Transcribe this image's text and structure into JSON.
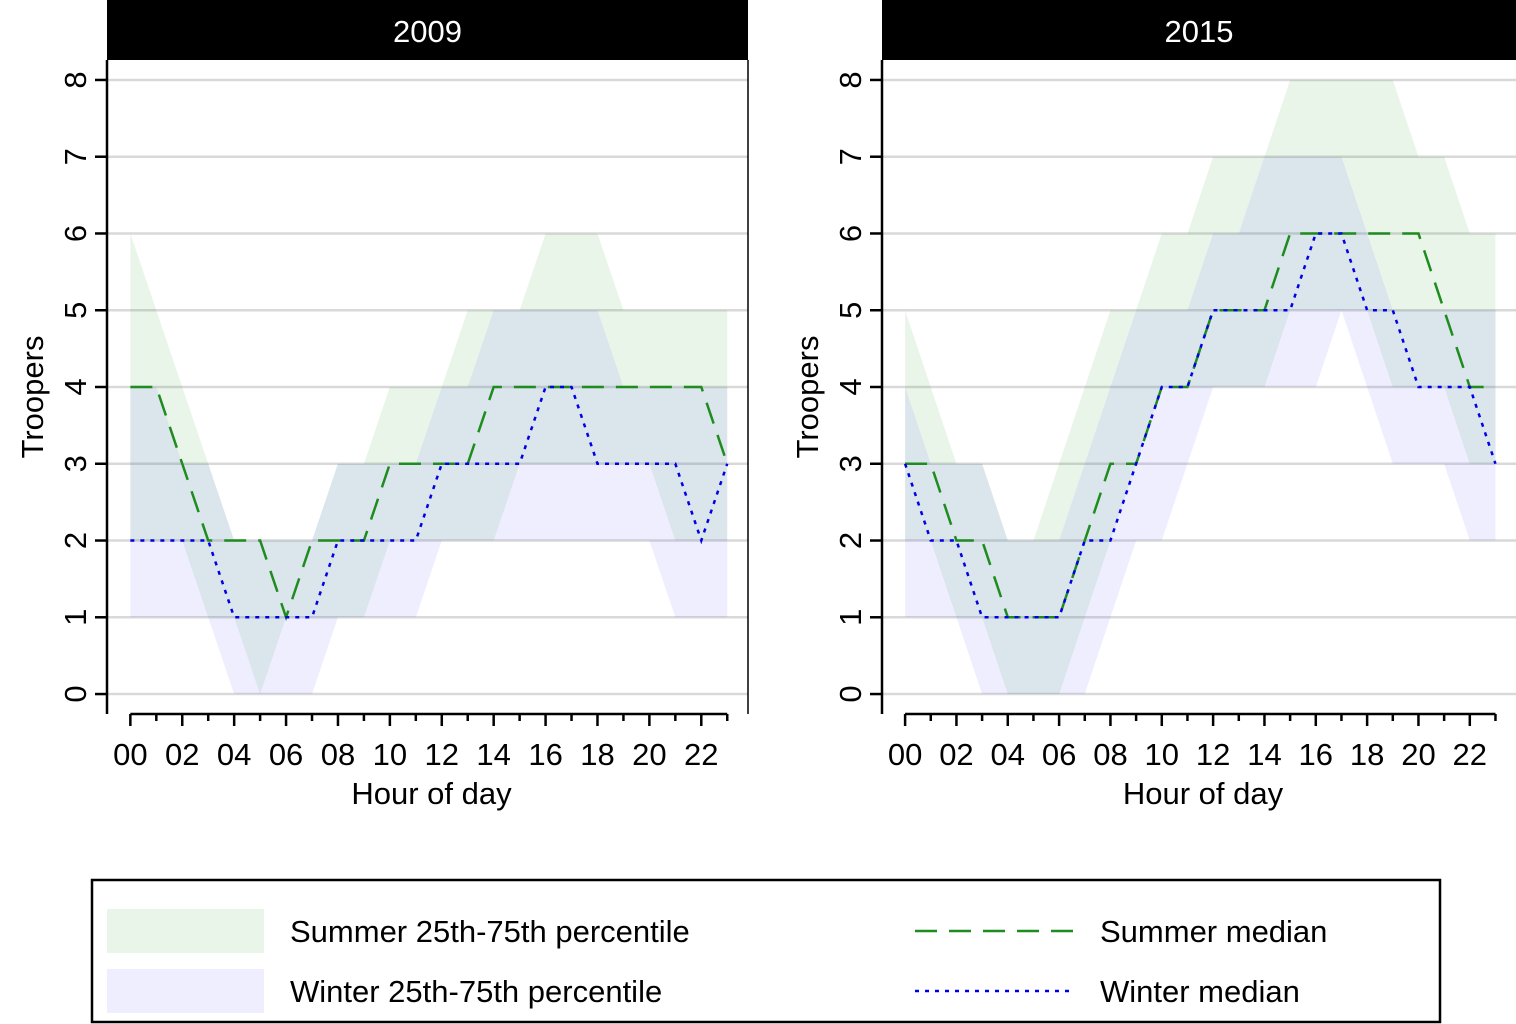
{
  "chart_data": [
    {
      "type": "line",
      "title": "2009",
      "y_label": "Troopers",
      "x_label": "Hour of day",
      "x": [
        0,
        1,
        2,
        3,
        4,
        5,
        6,
        7,
        8,
        9,
        10,
        11,
        12,
        13,
        14,
        15,
        16,
        17,
        18,
        19,
        20,
        21,
        22,
        23
      ],
      "xlim": [
        -0.9,
        23.8
      ],
      "ylim": [
        -0.26,
        8.26
      ],
      "xticks": [
        {
          "value": 0,
          "label": "00"
        },
        {
          "value": 2,
          "label": "02"
        },
        {
          "value": 4,
          "label": "04"
        },
        {
          "value": 6,
          "label": "06"
        },
        {
          "value": 8,
          "label": "08"
        },
        {
          "value": 10,
          "label": "10"
        },
        {
          "value": 12,
          "label": "12"
        },
        {
          "value": 14,
          "label": "14"
        },
        {
          "value": 16,
          "label": "16"
        },
        {
          "value": 18,
          "label": "18"
        },
        {
          "value": 20,
          "label": "20"
        },
        {
          "value": 22,
          "label": "22"
        }
      ],
      "yticks": [
        0,
        1,
        2,
        3,
        4,
        5,
        6,
        7,
        8
      ],
      "grid": true,
      "series": [
        {
          "name": "Summer 25th-75th percentile",
          "color": "#2e9e2e",
          "lower": [
            2,
            2,
            2,
            1,
            1,
            0,
            1,
            1,
            1,
            1,
            2,
            2,
            2,
            2,
            2,
            3,
            3,
            3,
            3,
            3,
            3,
            2,
            2,
            2
          ],
          "upper": [
            6,
            5,
            4,
            3,
            2,
            2,
            2,
            2,
            3,
            3,
            4,
            4,
            4,
            5,
            5,
            5,
            6,
            6,
            6,
            5,
            5,
            5,
            5,
            5
          ]
        },
        {
          "name": "Winter 25th-75th percentile",
          "color": "#5a5aff",
          "lower": [
            1,
            1,
            1,
            1,
            0,
            0,
            0,
            0,
            1,
            1,
            1,
            1,
            2,
            2,
            2,
            2,
            2,
            2,
            2,
            2,
            2,
            1,
            1,
            1
          ],
          "upper": [
            4,
            4,
            3,
            3,
            2,
            2,
            2,
            2,
            3,
            3,
            3,
            3,
            4,
            4,
            5,
            5,
            5,
            5,
            5,
            4,
            4,
            4,
            4,
            4
          ]
        },
        {
          "name": "Summer median",
          "color": "#1f8c1f",
          "dash": "dashed",
          "values": [
            4,
            4,
            3,
            2,
            2,
            2,
            1,
            2,
            2,
            2,
            3,
            3,
            3,
            3,
            4,
            4,
            4,
            4,
            4,
            4,
            4,
            4,
            4,
            3
          ]
        },
        {
          "name": "Winter median",
          "color": "#0000e6",
          "dash": "dotted",
          "values": [
            2,
            2,
            2,
            2,
            1,
            1,
            1,
            1,
            2,
            2,
            2,
            2,
            3,
            3,
            3,
            3,
            4,
            4,
            3,
            3,
            3,
            3,
            2,
            3
          ]
        }
      ]
    },
    {
      "type": "line",
      "title": "2015",
      "y_label": "Troopers",
      "x_label": "Hour of day",
      "x": [
        0,
        1,
        2,
        3,
        4,
        5,
        6,
        7,
        8,
        9,
        10,
        11,
        12,
        13,
        14,
        15,
        16,
        17,
        18,
        19,
        20,
        21,
        22,
        23
      ],
      "xlim": [
        -0.9,
        23.8
      ],
      "ylim": [
        -0.26,
        8.26
      ],
      "xticks": [
        {
          "value": 0,
          "label": "00"
        },
        {
          "value": 2,
          "label": "02"
        },
        {
          "value": 4,
          "label": "04"
        },
        {
          "value": 6,
          "label": "06"
        },
        {
          "value": 8,
          "label": "08"
        },
        {
          "value": 10,
          "label": "10"
        },
        {
          "value": 12,
          "label": "12"
        },
        {
          "value": 14,
          "label": "14"
        },
        {
          "value": 16,
          "label": "16"
        },
        {
          "value": 18,
          "label": "18"
        },
        {
          "value": 20,
          "label": "20"
        },
        {
          "value": 22,
          "label": "22"
        }
      ],
      "yticks": [
        0,
        1,
        2,
        3,
        4,
        5,
        6,
        7,
        8
      ],
      "grid": true,
      "series": [
        {
          "color": "#2e9e2e",
          "lower": [
            2,
            2,
            1,
            1,
            0,
            0,
            0,
            1,
            2,
            3,
            4,
            4,
            4,
            4,
            4,
            5,
            5,
            5,
            5,
            4,
            4,
            4,
            3,
            3
          ],
          "upper": [
            5,
            4,
            3,
            3,
            2,
            2,
            3,
            4,
            5,
            5,
            6,
            6,
            7,
            7,
            7,
            8,
            8,
            8,
            8,
            8,
            7,
            7,
            6,
            6
          ]
        },
        {
          "color": "#5a5aff",
          "lower": [
            1,
            1,
            1,
            0,
            0,
            0,
            0,
            0,
            1,
            2,
            2,
            3,
            4,
            4,
            4,
            4,
            4,
            5,
            4,
            3,
            3,
            3,
            2,
            2
          ],
          "upper": [
            4,
            3,
            3,
            3,
            2,
            2,
            2,
            3,
            4,
            5,
            5,
            5,
            6,
            6,
            7,
            7,
            7,
            7,
            6,
            5,
            5,
            5,
            5,
            5
          ]
        },
        {
          "color": "#1f8c1f",
          "dash": "dashed",
          "values": [
            3,
            3,
            2,
            2,
            1,
            1,
            1,
            2,
            3,
            3,
            4,
            4,
            5,
            5,
            5,
            6,
            6,
            6,
            6,
            6,
            6,
            5,
            4,
            4
          ]
        },
        {
          "color": "#0000e6",
          "dash": "dotted",
          "values": [
            3,
            2,
            2,
            1,
            1,
            1,
            1,
            2,
            2,
            3,
            4,
            4,
            5,
            5,
            5,
            5,
            6,
            6,
            5,
            5,
            4,
            4,
            4,
            3
          ]
        }
      ]
    }
  ]
}
